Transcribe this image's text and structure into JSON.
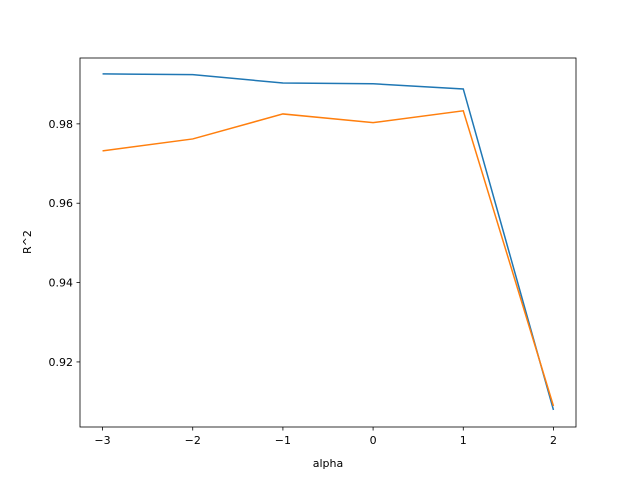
{
  "chart_data": {
    "type": "line",
    "x_label": "alpha",
    "y_label": "R^2",
    "x": [
      -3,
      -2,
      -1,
      0,
      1,
      2
    ],
    "series": [
      {
        "color": "#1f77b4",
        "values": [
          0.9926,
          0.9924,
          0.9903,
          0.9901,
          0.9888,
          0.9079
        ]
      },
      {
        "color": "#ff7f0e",
        "values": [
          0.9732,
          0.9762,
          0.9825,
          0.9803,
          0.9833,
          0.9089
        ]
      }
    ],
    "xlim": [
      -3.25,
      2.25
    ],
    "xticks": [
      {
        "value": -3,
        "label": "−3"
      },
      {
        "value": -2,
        "label": "−2"
      },
      {
        "value": -1,
        "label": "−1"
      },
      0,
      1,
      2
    ],
    "ylim": [
      0.9036,
      0.9966
    ],
    "yticks": [
      0.92,
      0.94,
      0.96,
      0.98
    ],
    "grid": false
  }
}
